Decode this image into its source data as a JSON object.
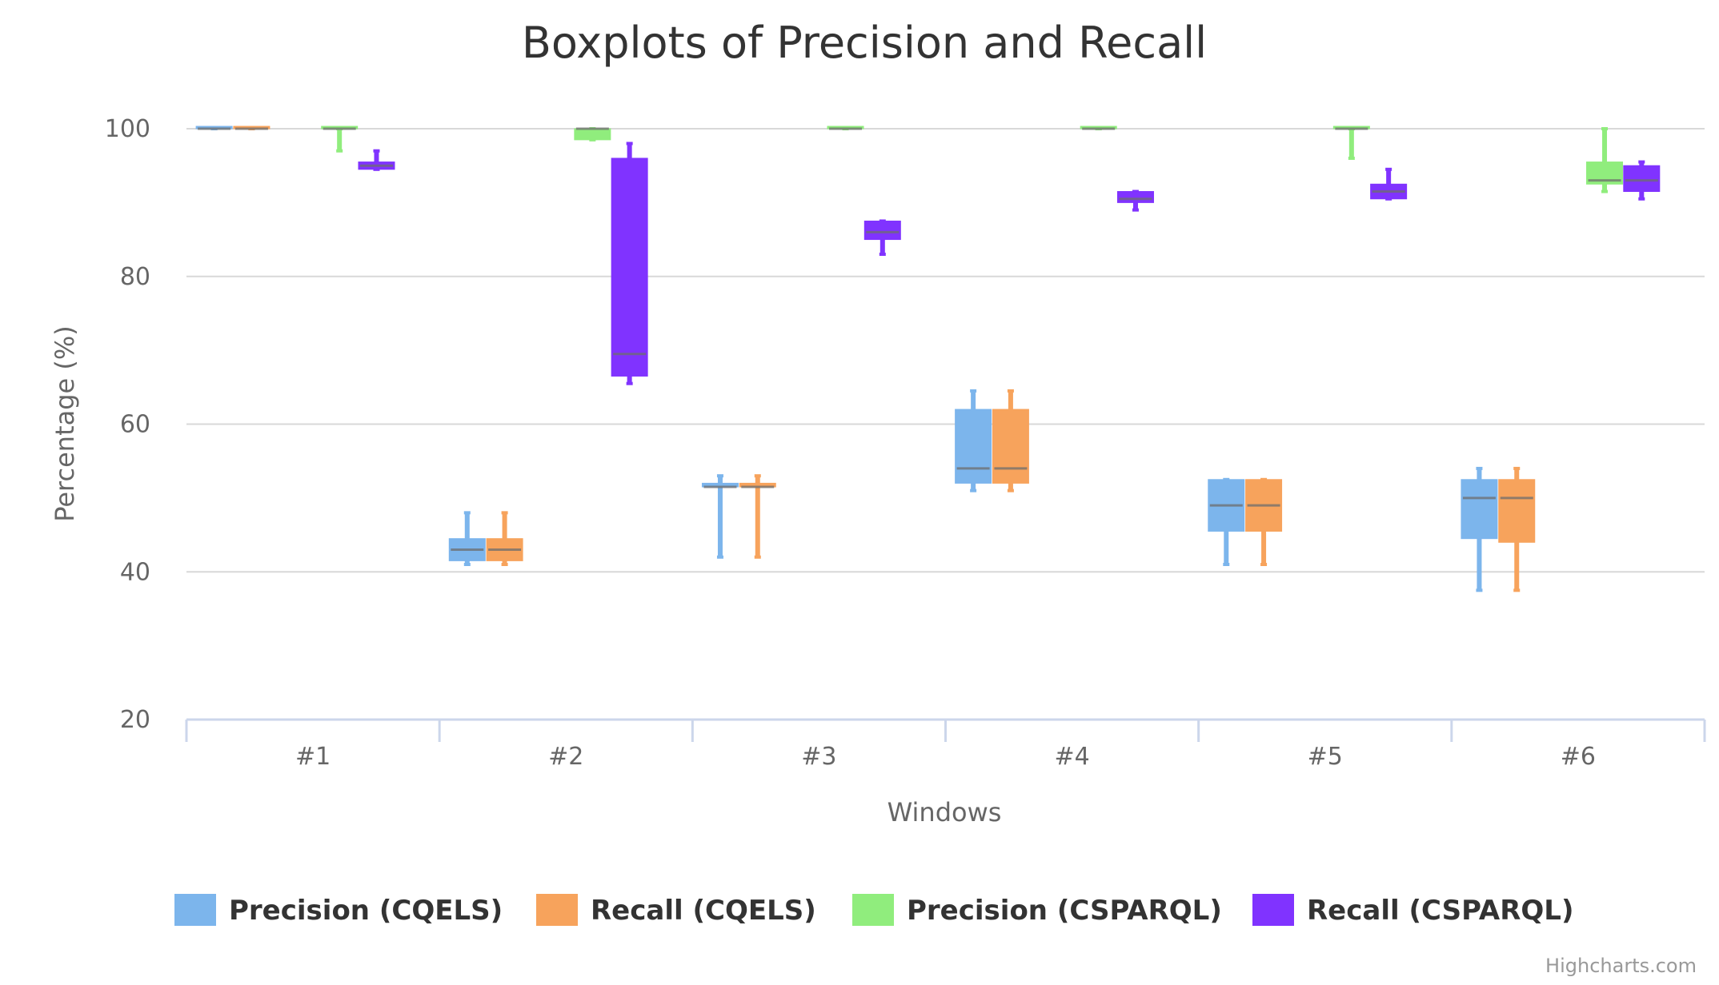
{
  "chart_data": {
    "type": "boxplot",
    "title": "Boxplots of Precision and Recall",
    "xlabel": "Windows",
    "ylabel": "Percentage (%)",
    "categories": [
      "#1",
      "#2",
      "#3",
      "#4",
      "#5",
      "#6"
    ],
    "yticks": [
      20,
      40,
      60,
      80,
      100
    ],
    "ylim": [
      20,
      100
    ],
    "grid": true,
    "legend_position": "bottom",
    "credits": "Highcharts.com",
    "series": [
      {
        "name": "Precision (CQELS)",
        "color": "#7cb5ec",
        "boxes": [
          [
            100,
            100,
            100,
            100,
            100
          ],
          [
            41,
            41.5,
            43,
            44.5,
            48
          ],
          [
            42,
            51.5,
            51.5,
            52,
            53
          ],
          [
            51,
            52,
            54,
            62,
            64.5
          ],
          [
            41,
            45.5,
            49,
            52.5,
            52.5
          ],
          [
            37.5,
            44.5,
            50,
            52.5,
            54
          ]
        ]
      },
      {
        "name": "Recall (CQELS)",
        "color": "#f7a35c",
        "boxes": [
          [
            100,
            100,
            100,
            100,
            100
          ],
          [
            41,
            41.5,
            43,
            44.5,
            48
          ],
          [
            42,
            51.5,
            51.5,
            52,
            53
          ],
          [
            51,
            52,
            54,
            62,
            64.5
          ],
          [
            41,
            45.5,
            49,
            52.5,
            52.5
          ],
          [
            37.5,
            44,
            50,
            52.5,
            54
          ]
        ]
      },
      {
        "name": "Precision (CSPARQL)",
        "color": "#90ed7d",
        "boxes": [
          [
            97,
            100,
            100,
            100,
            100
          ],
          [
            98.5,
            98.5,
            100,
            100,
            100
          ],
          [
            100,
            100,
            100,
            100,
            100
          ],
          [
            100,
            100,
            100,
            100,
            100
          ],
          [
            96,
            100,
            100,
            100,
            100
          ],
          [
            91.5,
            92.5,
            93,
            95.5,
            100
          ]
        ]
      },
      {
        "name": "Recall (CSPARQL)",
        "color": "#8033ff",
        "boxes": [
          [
            94.5,
            94.5,
            95,
            95.5,
            97
          ],
          [
            65.5,
            66.5,
            69.5,
            96,
            98
          ],
          [
            83,
            85,
            86,
            87.5,
            87.5
          ],
          [
            89,
            90,
            90.5,
            91.5,
            91.5
          ],
          [
            90.5,
            90.5,
            91.5,
            92.5,
            94.5
          ],
          [
            90.5,
            91.5,
            93,
            95,
            95.5
          ]
        ]
      }
    ]
  }
}
